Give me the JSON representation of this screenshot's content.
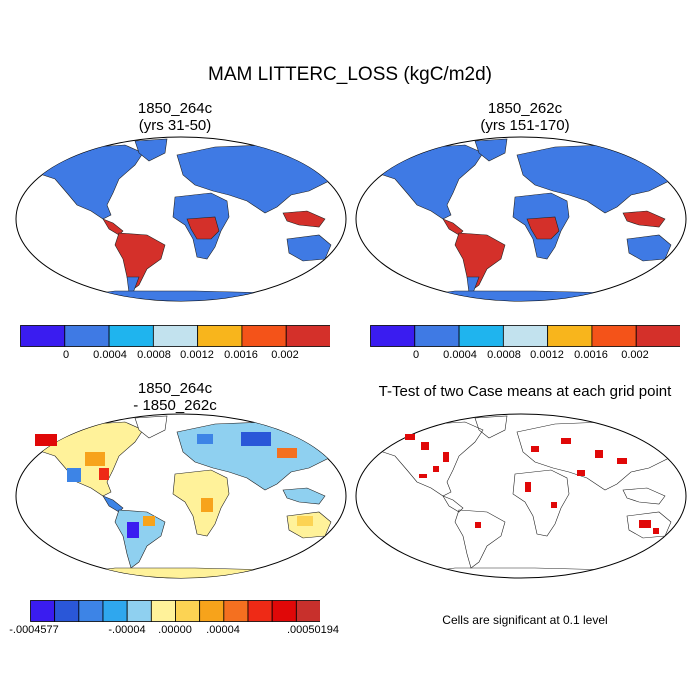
{
  "title": "MAM LITTERC_LOSS (kgC/m2d)",
  "panels": [
    {
      "title_line1": "1850_264c",
      "title_line2": "(yrs 31-50)"
    },
    {
      "title_line1": "1850_262c",
      "title_line2": "(yrs 151-170)"
    },
    {
      "title_line1": "1850_264c",
      "title_line2": "- 1850_262c"
    },
    {
      "title_line1": "T-Test of two Case means at each grid point",
      "title_line2": ""
    }
  ],
  "colorbar_abs": {
    "colors": [
      "#3a1cf0",
      "#3f7ae4",
      "#1fb4ee",
      "#c2e2ee",
      "#f8b51c",
      "#f45319",
      "#d4302a"
    ],
    "tick_labels": [
      "0",
      "0.0004",
      "0.0008",
      "0.0012",
      "0.0016",
      "0.002"
    ]
  },
  "colorbar_diff": {
    "colors": [
      "#3a1cf0",
      "#2a57d8",
      "#3d84e6",
      "#2fa7ee",
      "#8fd0f0",
      "#fff29a",
      "#fcd353",
      "#f7a31b",
      "#f47020",
      "#ee2a16",
      "#e00808",
      "#c8302c"
    ],
    "tick_labels": [
      "-.0004577",
      "-.00004",
      ".00000",
      ".00004",
      ".00050194"
    ]
  },
  "note": "Cells are significant at 0.1 level",
  "colors": {
    "land_abs": "#3f7ae4",
    "land_diff": "#fff29a",
    "tropics_abs": "#d4302a",
    "significant": "#e00808"
  }
}
